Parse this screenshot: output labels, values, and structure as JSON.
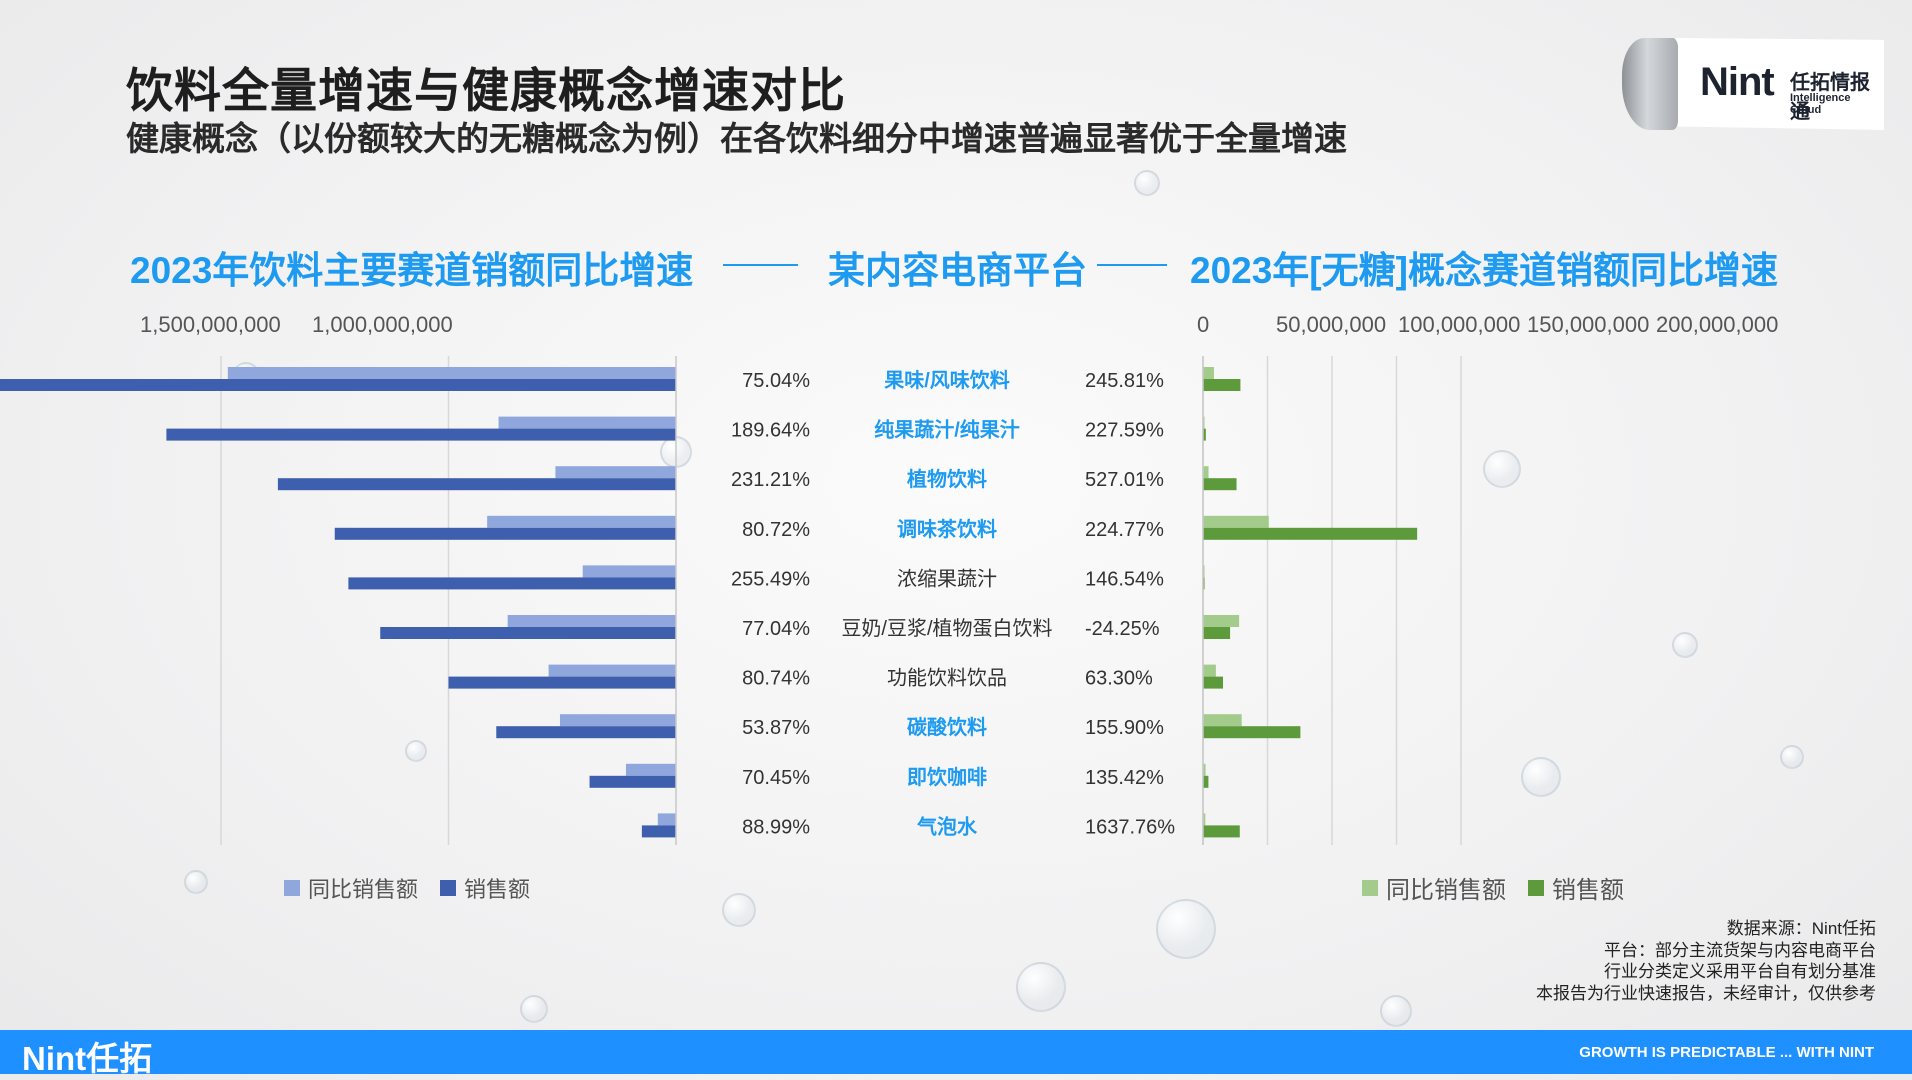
{
  "title": "饮料全量增速与健康概念增速对比",
  "subtitle": "健康概念（以份额较大的无糖概念为例）在各饮料细分中增速普遍显著优于全量增速",
  "brand": {
    "logo_text": "Nint",
    "logo_cn": "任拓情报通",
    "logo_en": "Intelligence Cloud",
    "footer_logo": "Nint任拓",
    "footer_tagline": "GROWTH IS PREDICTABLE ... WITH NINT"
  },
  "headings": {
    "left": "2023年饮料主要赛道销额同比增速",
    "center": "某内容电商平台",
    "right": "2023年[无糖]概念赛道销额同比增速"
  },
  "footnotes": [
    "数据来源：Nint任拓",
    "平台：部分主流货架与内容电商平台",
    "行业分类定义采用平台自有划分基准",
    "本报告为行业快速报告，未经审计，仅供参考"
  ],
  "colors": {
    "accent": "#1e9bf0",
    "left_sales": "#3d5fae",
    "left_yoy": "#8fa7dc",
    "right_sales": "#5c9a3c",
    "right_yoy": "#a3cc8c",
    "footer": "#1e90ff"
  },
  "chart_data": [
    {
      "type": "bar",
      "orientation": "horizontal-reversed",
      "title": "2023年饮料主要赛道销额同比增速",
      "categories": [
        "果味/风味饮料",
        "纯果蔬汁/纯果汁",
        "植物饮料",
        "调味茶饮料",
        "浓缩果蔬汁",
        "豆奶/豆浆/植物蛋白饮料",
        "功能饮料饮品",
        "碳酸饮料",
        "即饮咖啡",
        "气泡水"
      ],
      "axis_ticks": [
        "1,500,000,000",
        "1,000,000,000"
      ],
      "axis_tick_values": [
        1500000000,
        1000000000
      ],
      "xlim": [
        0,
        1750000000
      ],
      "grid": true,
      "series": [
        {
          "name": "同比销售额",
          "values": [
            985000000,
            390000000,
            265000000,
            415000000,
            205000000,
            370000000,
            280000000,
            255000000,
            110000000,
            40000000
          ]
        },
        {
          "name": "销售额",
          "values": [
            1720000000,
            1120000000,
            875000000,
            750000000,
            720000000,
            650000000,
            500000000,
            395000000,
            190000000,
            75000000
          ]
        }
      ],
      "growth_labels": [
        "75.04%",
        "189.64%",
        "231.21%",
        "80.72%",
        "255.49%",
        "77.04%",
        "80.74%",
        "53.87%",
        "70.45%",
        "88.99%"
      ],
      "legend": "bottom"
    },
    {
      "type": "bar",
      "orientation": "horizontal",
      "title": "2023年[无糖]概念赛道销额同比增速",
      "categories": [
        "果味/风味饮料",
        "纯果蔬汁/纯果汁",
        "植物饮料",
        "调味茶饮料",
        "浓缩果蔬汁",
        "豆奶/豆浆/植物蛋白饮料",
        "功能饮料饮品",
        "碳酸饮料",
        "即饮咖啡",
        "气泡水"
      ],
      "axis_ticks": [
        "0",
        "50,000,000",
        "100,000,000",
        "150,000,000",
        "200,000,000"
      ],
      "axis_tick_values": [
        0,
        50000000,
        100000000,
        150000000,
        200000000
      ],
      "xlim": [
        0,
        225000000
      ],
      "grid": true,
      "series": [
        {
          "name": "同比销售额",
          "values": [
            8500000,
            900000,
            4300000,
            51000000,
            200000,
            28000000,
            10000000,
            30000000,
            2000000,
            1800000
          ]
        },
        {
          "name": "销售额",
          "values": [
            29000000,
            2200000,
            26000000,
            166000000,
            400000,
            21000000,
            15500000,
            75500000,
            4200000,
            28500000
          ]
        }
      ],
      "growth_labels": [
        "245.81%",
        "227.59%",
        "527.01%",
        "224.77%",
        "146.54%",
        "-24.25%",
        "63.30%",
        "155.90%",
        "135.42%",
        "1637.76%"
      ],
      "legend": "bottom"
    }
  ],
  "highlighted_categories": [
    0,
    1,
    2,
    3,
    7,
    8,
    9
  ],
  "category_colors": {
    "highlight": "#1e9bf0",
    "normal": "#333333"
  }
}
